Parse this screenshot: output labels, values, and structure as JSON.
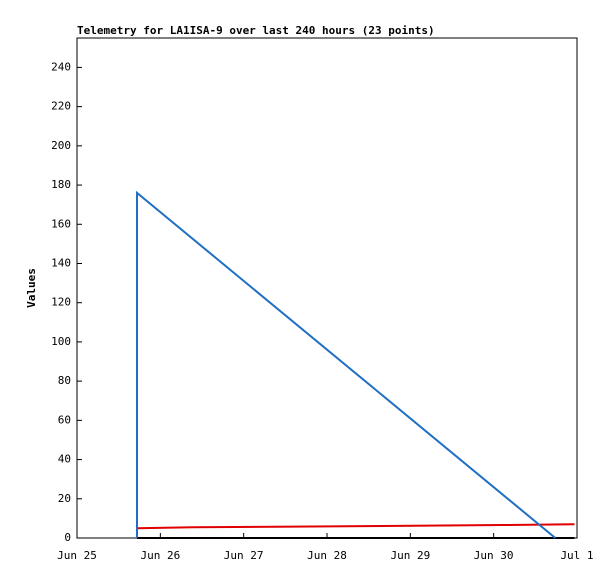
{
  "chart_data": {
    "type": "line",
    "title": "Telemetry for LA1ISA-9 over last 240 hours (23 points)",
    "y_label": "Values",
    "xlim": [
      25,
      31
    ],
    "xticks": [
      {
        "value": 25,
        "label": "Jun 25"
      },
      {
        "value": 26,
        "label": "Jun 26"
      },
      {
        "value": 27,
        "label": "Jun 27"
      },
      {
        "value": 28,
        "label": "Jun 28"
      },
      {
        "value": 29,
        "label": "Jun 29"
      },
      {
        "value": 30,
        "label": "Jun 30"
      },
      {
        "value": 31,
        "label": "Jul 1"
      }
    ],
    "ylim": [
      0,
      255
    ],
    "yticks": [
      0,
      20,
      40,
      60,
      80,
      100,
      120,
      140,
      160,
      180,
      200,
      220,
      240
    ],
    "series": [
      {
        "color": "#000000",
        "x": [
          25.72,
          30.97
        ],
        "values": [
          0,
          0
        ]
      },
      {
        "color": "#e00000",
        "x": [
          25.72,
          26.4,
          27.6,
          28.85,
          30.1,
          30.97
        ],
        "values": [
          5,
          5.5,
          5.8,
          6.2,
          6.6,
          7
        ]
      },
      {
        "color": "#1f6fc4",
        "x": [
          25.72,
          25.72,
          30.74
        ],
        "values": [
          0,
          176,
          0
        ]
      }
    ]
  }
}
